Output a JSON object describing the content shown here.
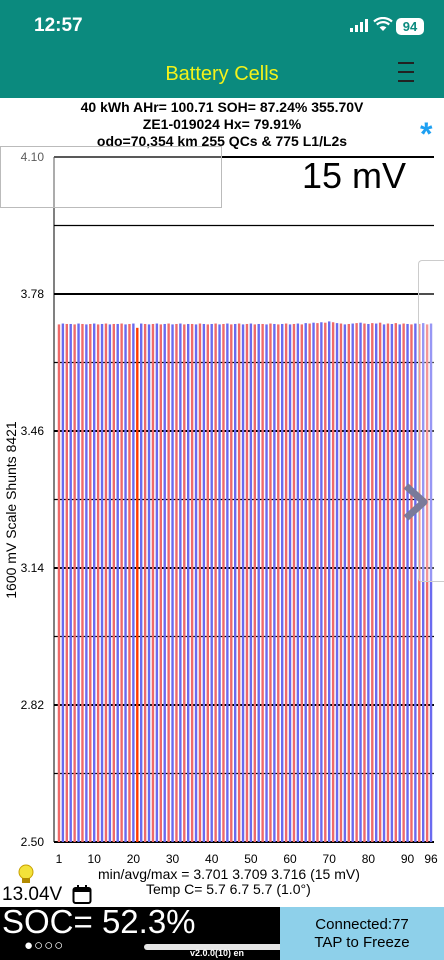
{
  "status": {
    "time": "12:57",
    "battery": "94"
  },
  "nav": {
    "title": "Battery Cells",
    "menu_icon": "hamburger-menu-icon"
  },
  "info": {
    "line1": "40 kWh  AHr= 100.71  SOH= 87.24%   355.70V",
    "line2": "ZE1-019024   Hx= 79.91%",
    "line3": "odo=70,354 km 255 QCs & 775 L1/L2s"
  },
  "scale_label": "15 mV",
  "y_axis_label": "1600 mV Scale   Shunts 8421",
  "chart_data": {
    "type": "bar",
    "y_ticks": [
      "4.10",
      "3.78",
      "3.46",
      "3.14",
      "2.82",
      "2.50"
    ],
    "x_ticks": [
      "1",
      "10",
      "20",
      "30",
      "40",
      "50",
      "60",
      "70",
      "80",
      "90",
      "96"
    ],
    "ylim": [
      2.5,
      4.1
    ],
    "cells": 96,
    "colors": {
      "odd": "#ef6a6a",
      "even": "#6a6aef",
      "highlight": "#ff3b00"
    },
    "values": [
      3.709,
      3.711,
      3.71,
      3.71,
      3.709,
      3.711,
      3.71,
      3.709,
      3.71,
      3.711,
      3.709,
      3.71,
      3.711,
      3.709,
      3.71,
      3.71,
      3.711,
      3.709,
      3.71,
      3.711,
      3.701,
      3.711,
      3.71,
      3.709,
      3.71,
      3.711,
      3.709,
      3.71,
      3.711,
      3.709,
      3.71,
      3.711,
      3.709,
      3.71,
      3.71,
      3.709,
      3.711,
      3.71,
      3.709,
      3.71,
      3.711,
      3.709,
      3.71,
      3.711,
      3.709,
      3.71,
      3.711,
      3.709,
      3.71,
      3.711,
      3.709,
      3.71,
      3.71,
      3.709,
      3.711,
      3.71,
      3.709,
      3.71,
      3.711,
      3.709,
      3.71,
      3.711,
      3.709,
      3.712,
      3.711,
      3.713,
      3.712,
      3.714,
      3.713,
      3.716,
      3.714,
      3.712,
      3.711,
      3.709,
      3.71,
      3.711,
      3.712,
      3.713,
      3.711,
      3.71,
      3.712,
      3.711,
      3.713,
      3.709,
      3.711,
      3.71,
      3.712,
      3.709,
      3.711,
      3.71,
      3.709,
      3.711,
      3.71,
      3.712,
      3.709,
      3.711
    ],
    "highlight_index": 20
  },
  "stats": {
    "minavgmax": "min/avg/max = 3.701  3.709  3.716  (15 mV)",
    "temp": "Temp C= 5.7  6.7  5.7  (1.0°)"
  },
  "voltage": "13.04V",
  "soc": "SOC= 52.3%",
  "page_dots": "●○○○",
  "version": "v2.0.0(10) en",
  "connection": {
    "line1": "Connected:77",
    "line2": "TAP to Freeze"
  }
}
